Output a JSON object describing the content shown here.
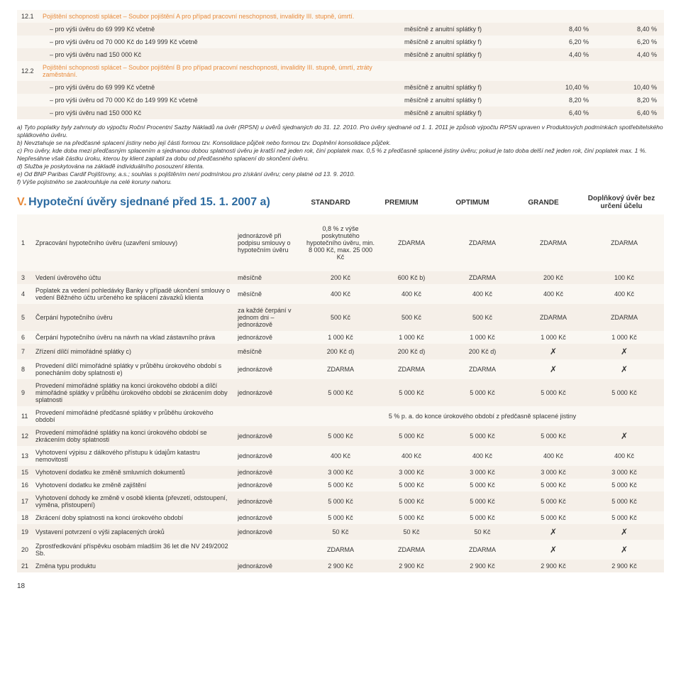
{
  "colors": {
    "alt_bg": "#f5efe8",
    "orange": "#e88a3a",
    "blue": "#2b6aa0",
    "text": "#333333"
  },
  "section12": {
    "rows121": {
      "num": "12.1",
      "title": "Pojištění schopnosti splácet – Soubor pojištění A pro případ pracovní neschopnosti, invalidity III. stupně, úmrtí.",
      "r1": {
        "d": "– pro výši úvěru do 69 999 Kč včetně",
        "p": "měsíčně z anuitní splátky f)",
        "v1": "8,40 %",
        "v2": "8,40 %"
      },
      "r2": {
        "d": "– pro výši úvěru od 70 000 Kč do 149 999 Kč včetně",
        "p": "měsíčně z anuitní splátky f)",
        "v1": "6,20 %",
        "v2": "6,20 %"
      },
      "r3": {
        "d": "– pro výši úvěru nad 150 000 Kč",
        "p": "měsíčně z anuitní splátky f)",
        "v1": "4,40 %",
        "v2": "4,40 %"
      }
    },
    "rows122": {
      "num": "12.2",
      "title": "Pojištění schopnosti splácet – Soubor pojištění B pro případ pracovní neschopnosti, invalidity III. stupně, úmrtí, ztráty zaměstnání.",
      "r1": {
        "d": "– pro výši úvěru do 69 999 Kč včetně",
        "p": "měsíčně z anuitní splátky f)",
        "v1": "10,40 %",
        "v2": "10,40 %"
      },
      "r2": {
        "d": "– pro výši úvěru od 70 000 Kč do 149 999 Kč včetně",
        "p": "měsíčně z anuitní splátky f)",
        "v1": "8,20 %",
        "v2": "8,20 %"
      },
      "r3": {
        "d": "– pro výši úvěru nad 150 000 Kč",
        "p": "měsíčně z anuitní splátky f)",
        "v1": "6,40 %",
        "v2": "6,40 %"
      }
    }
  },
  "footnotes": {
    "a": "a) Tyto poplatky byly zahrnuty do výpočtu Roční Procentní Sazby Nákladů na úvěr (RPSN) u úvěrů sjednaných do 31. 12. 2010. Pro úvěry sjednané od 1. 1. 2011 je způsob výpočtu RPSN upraven v Produktových podmínkách spotřebitelského splátkového úvěru.",
    "b": "b) Nevztahuje se na předčasné splacení jistiny nebo její části formou tzv. Konsolidace půjček nebo formou tzv. Doplnění konsolidace půjček.",
    "c": "c) Pro úvěry, kde doba mezi předčasným splacením a sjednanou dobou splatnosti úvěru je kratší než jeden rok, činí poplatek max. 0,5 % z předčasně splacené jistiny úvěru; pokud je tato doba delší než jeden rok, činí poplatek max. 1 %. Nepřesáhne však částku úroku, kterou by klient zaplatil za dobu od předčasného splacení do skončení úvěru.",
    "d": "d) Služba je poskytována na základě individuálního posouzení klienta.",
    "e": "e) Od BNP Paribas Cardif Pojišťovny, a.s.; souhlas s pojištěním není podmínkou pro získání úvěru; ceny platné od 13. 9. 2010.",
    "f": "f) Výše pojistného se zaokrouhluje na celé koruny nahoru."
  },
  "sectionV": {
    "prefix": "V.",
    "title": "Hypoteční úvěry sjednané před 15. 1. 2007 a)",
    "columns": {
      "c1": "STANDARD",
      "c2": "PREMIUM",
      "c3": "OPTIMUM",
      "c4": "GRANDE",
      "c5": "Doplňkový úvěr bez určení účelu"
    },
    "rows": {
      "r1": {
        "n": "1",
        "d": "Zpracování hypotečního úvěru (uzavření smlouvy)",
        "p": "jednorázově při podpisu smlouvy o hypotečním úvěru",
        "c1": "0,8 % z výše poskytnutého hypotečního úvěru, min. 8 000 Kč, max. 25 000 Kč",
        "c2": "ZDARMA",
        "c3": "ZDARMA",
        "c4": "ZDARMA",
        "c5": "ZDARMA"
      },
      "r3": {
        "n": "3",
        "d": "Vedení úvěrového účtu",
        "p": "měsíčně",
        "c1": "200 Kč",
        "c2": "600 Kč b)",
        "c3": "ZDARMA",
        "c4": "200 Kč",
        "c5": "100 Kč"
      },
      "r4": {
        "n": "4",
        "d": "Poplatek za vedení pohledávky Banky v případě ukončení smlouvy o vedení Běžného účtu určeného ke splácení závazků klienta",
        "p": "měsíčně",
        "c1": "400 Kč",
        "c2": "400 Kč",
        "c3": "400 Kč",
        "c4": "400 Kč",
        "c5": "400 Kč"
      },
      "r5": {
        "n": "5",
        "d": "Čerpání hypotečního úvěru",
        "p": "za každé čerpání v jednom dni – jednorázově",
        "c1": "500 Kč",
        "c2": "500 Kč",
        "c3": "500 Kč",
        "c4": "ZDARMA",
        "c5": "ZDARMA"
      },
      "r6": {
        "n": "6",
        "d": "Čerpání hypotečního úvěru na návrh na vklad zástavního práva",
        "p": "jednorázově",
        "c1": "1 000 Kč",
        "c2": "1 000 Kč",
        "c3": "1 000 Kč",
        "c4": "1 000 Kč",
        "c5": "1 000 Kč"
      },
      "r7": {
        "n": "7",
        "d": "Zřízení dílčí mimořádné splátky c)",
        "p": "měsíčně",
        "c1": "200 Kč d)",
        "c2": "200 Kč d)",
        "c3": "200 Kč d)",
        "c4": "✗",
        "c5": "✗"
      },
      "r8": {
        "n": "8",
        "d": "Provedení dílčí mimořádné splátky v průběhu úrokového období s ponecháním doby splatnosti e)",
        "p": "jednorázově",
        "c1": "ZDARMA",
        "c2": "ZDARMA",
        "c3": "ZDARMA",
        "c4": "✗",
        "c5": "✗"
      },
      "r9": {
        "n": "9",
        "d": "Provedení mimořádné splátky na konci úrokového období a dílčí mimořádné splátky v průběhu úrokového období se zkrácením doby splatnosti",
        "p": "jednorázově",
        "c1": "5 000 Kč",
        "c2": "5 000 Kč",
        "c3": "5 000 Kč",
        "c4": "5 000 Kč",
        "c5": "5 000 Kč"
      },
      "r11": {
        "n": "11",
        "d": "Provedení mimořádné předčasné splátky v průběhu úrokového období",
        "p": "",
        "c1": "",
        "c2": "5 % p. a. do konce úrokového období z předčasně splacené jistiny",
        "c3": "",
        "c4": "",
        "c5": ""
      },
      "r12": {
        "n": "12",
        "d": "Provedení mimořádné splátky na konci úrokového období se zkrácením doby splatnosti",
        "p": "jednorázově",
        "c1": "5 000 Kč",
        "c2": "5 000 Kč",
        "c3": "5 000 Kč",
        "c4": "5 000 Kč",
        "c5": "✗"
      },
      "r13": {
        "n": "13",
        "d": "Vyhotovení výpisu z dálkového přístupu k údajům katastru nemovitostí",
        "p": "jednorázově",
        "c1": "400 Kč",
        "c2": "400 Kč",
        "c3": "400 Kč",
        "c4": "400 Kč",
        "c5": "400 Kč"
      },
      "r15": {
        "n": "15",
        "d": "Vyhotovení dodatku ke změně smluvních dokumentů",
        "p": "jednorázově",
        "c1": "3 000 Kč",
        "c2": "3 000 Kč",
        "c3": "3 000 Kč",
        "c4": "3 000 Kč",
        "c5": "3 000 Kč"
      },
      "r16": {
        "n": "16",
        "d": "Vyhotovení dodatku ke změně zajištění",
        "p": "jednorázově",
        "c1": "5 000 Kč",
        "c2": "5 000 Kč",
        "c3": "5 000 Kč",
        "c4": "5 000 Kč",
        "c5": "5 000 Kč"
      },
      "r17": {
        "n": "17",
        "d": "Vyhotovení dohody ke změně v osobě klienta (převzetí, odstoupení, výměna, přistoupení)",
        "p": "jednorázově",
        "c1": "5 000 Kč",
        "c2": "5 000 Kč",
        "c3": "5 000 Kč",
        "c4": "5 000 Kč",
        "c5": "5 000 Kč"
      },
      "r18": {
        "n": "18",
        "d": "Zkrácení doby splatnosti na konci úrokového období",
        "p": "jednorázově",
        "c1": "5 000 Kč",
        "c2": "5 000 Kč",
        "c3": "5 000 Kč",
        "c4": "5 000 Kč",
        "c5": "5 000 Kč"
      },
      "r19": {
        "n": "19",
        "d": "Vystavení potvrzení o výši zaplacených úroků",
        "p": "jednorázově",
        "c1": "50 Kč",
        "c2": "50 Kč",
        "c3": "50 Kč",
        "c4": "✗",
        "c5": "✗"
      },
      "r20": {
        "n": "20",
        "d": "Zprostředkování příspěvku osobám mladším 36 let dle NV 249/2002 Sb.",
        "p": "",
        "c1": "ZDARMA",
        "c2": "ZDARMA",
        "c3": "ZDARMA",
        "c4": "✗",
        "c5": "✗"
      },
      "r21": {
        "n": "21",
        "d": "Změna typu produktu",
        "p": "jednorázově",
        "c1": "2 900 Kč",
        "c2": "2 900 Kč",
        "c3": "2 900 Kč",
        "c4": "2 900 Kč",
        "c5": "2 900 Kč"
      }
    }
  },
  "pagenum": "18"
}
